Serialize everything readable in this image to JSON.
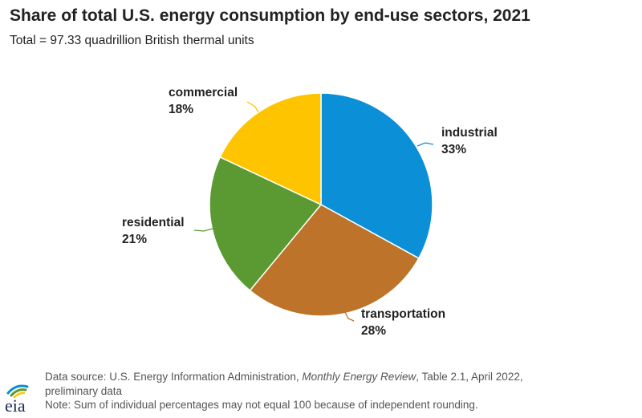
{
  "header": {
    "title": "Share of total U.S. energy consumption by end-use sectors, 2021",
    "subtitle": "Total = 97.33 quadrillion British thermal units"
  },
  "chart_data": {
    "type": "pie",
    "title": "Share of total U.S. energy consumption by end-use sectors, 2021",
    "subtitle": "Total = 97.33 quadrillion British thermal units",
    "slices": [
      {
        "label": "industrial",
        "value": 33,
        "value_label": "33%",
        "color": "#0b8fd6"
      },
      {
        "label": "transportation",
        "value": 28,
        "value_label": "28%",
        "color": "#bd732a"
      },
      {
        "label": "residential",
        "value": 21,
        "value_label": "21%",
        "color": "#5b9a33"
      },
      {
        "label": "commercial",
        "value": 18,
        "value_label": "18%",
        "color": "#fec400"
      }
    ],
    "start": "12 o'clock, clockwise"
  },
  "footer": {
    "source_prefix": "Data source: U.S. Energy Information Administration,",
    "source_title": "Monthly Energy Review",
    "source_suffix": ", Table 2.1, April 2022,",
    "source_line2": "preliminary data",
    "note": "Note: Sum of individual percentages may not equal 100 because of independent rounding."
  },
  "logo": {
    "text": "eia"
  }
}
